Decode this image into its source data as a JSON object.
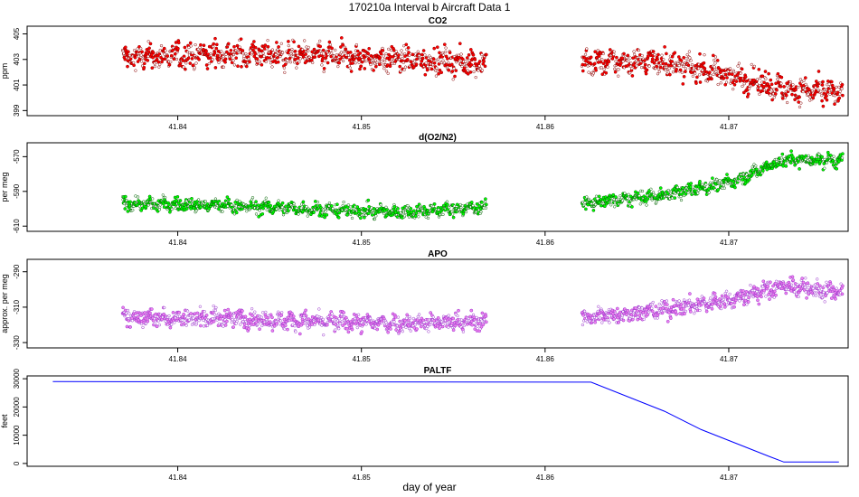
{
  "title": "170210a   Interval b Aircraft Data 1",
  "xlabel": "day of year",
  "chart_data": [
    {
      "type": "scatter",
      "title": "CO2",
      "ylabel": "ppm",
      "color": "#ff0000",
      "edge_color": "#8b0000",
      "xlim": [
        41.8318,
        41.8765
      ],
      "ylim": [
        398.6,
        405.6
      ],
      "xticks": [
        41.84,
        41.85,
        41.86,
        41.87
      ],
      "xtick_labels": [
        "41.84",
        "41.85",
        "41.86",
        "41.87"
      ],
      "yticks": [
        399,
        401,
        403,
        405
      ],
      "ytick_labels": [
        "399",
        "401",
        "403",
        "405"
      ],
      "segments": [
        {
          "x": [
            41.837,
            41.842,
            41.847,
            41.852,
            41.8568
          ],
          "y": [
            403.1,
            403.4,
            403.3,
            403.0,
            402.7
          ]
        },
        {
          "x": [
            41.862,
            41.866,
            41.87,
            41.873,
            41.8762
          ],
          "y": [
            402.7,
            402.9,
            401.8,
            400.7,
            400.3
          ]
        }
      ],
      "spread": 0.9
    },
    {
      "type": "scatter",
      "title": "d(O2/N2)",
      "ylabel": "per meg",
      "color": "#00ff00",
      "edge_color": "#006400",
      "xlim": [
        41.8318,
        41.8765
      ],
      "ylim": [
        -613,
        -562
      ],
      "xticks": [
        41.84,
        41.85,
        41.86,
        41.87
      ],
      "xtick_labels": [
        "41.84",
        "41.85",
        "41.86",
        "41.87"
      ],
      "yticks": [
        -610,
        -590,
        -570
      ],
      "ytick_labels": [
        "-610",
        "-590",
        "-570"
      ],
      "segments": [
        {
          "x": [
            41.837,
            41.842,
            41.847,
            41.852,
            41.8568
          ],
          "y": [
            -597,
            -598,
            -600,
            -602,
            -599
          ]
        },
        {
          "x": [
            41.862,
            41.866,
            41.87,
            41.873,
            41.8762
          ],
          "y": [
            -597,
            -593,
            -585,
            -572,
            -572
          ]
        }
      ],
      "spread": 3.5
    },
    {
      "type": "scatter",
      "title": "APO",
      "ylabel": "approx. per meg",
      "color": "#ee82ee",
      "edge_color": "#9932cc",
      "xlim": [
        41.8318,
        41.8765
      ],
      "ylim": [
        -333,
        -283
      ],
      "xticks": [
        41.84,
        41.85,
        41.86,
        41.87
      ],
      "xtick_labels": [
        "41.84",
        "41.85",
        "41.86",
        "41.87"
      ],
      "yticks": [
        -330,
        -310,
        -290
      ],
      "ytick_labels": [
        "-330",
        "-310",
        "-290"
      ],
      "segments": [
        {
          "x": [
            41.837,
            41.842,
            41.847,
            41.852,
            41.8568
          ],
          "y": [
            -316,
            -316,
            -318,
            -319,
            -318
          ]
        },
        {
          "x": [
            41.862,
            41.866,
            41.87,
            41.873,
            41.8762
          ],
          "y": [
            -316,
            -312,
            -306,
            -298,
            -302
          ]
        }
      ],
      "spread": 4.5
    },
    {
      "type": "line",
      "title": "PALTF",
      "ylabel": "feet",
      "color": "#0000ff",
      "xlim": [
        41.8318,
        41.8765
      ],
      "ylim": [
        -1000,
        31000
      ],
      "xticks": [
        41.84,
        41.85,
        41.86,
        41.87
      ],
      "xtick_labels": [
        "41.84",
        "41.85",
        "41.86",
        "41.87"
      ],
      "yticks": [
        0,
        10000,
        20000,
        30000
      ],
      "ytick_labels": [
        "0",
        "10000",
        "20000",
        "30000"
      ],
      "x": [
        41.8332,
        41.8625,
        41.8665,
        41.8685,
        41.8722,
        41.873,
        41.876
      ],
      "y": [
        29000,
        28800,
        18500,
        12000,
        2500,
        500,
        500
      ]
    }
  ]
}
